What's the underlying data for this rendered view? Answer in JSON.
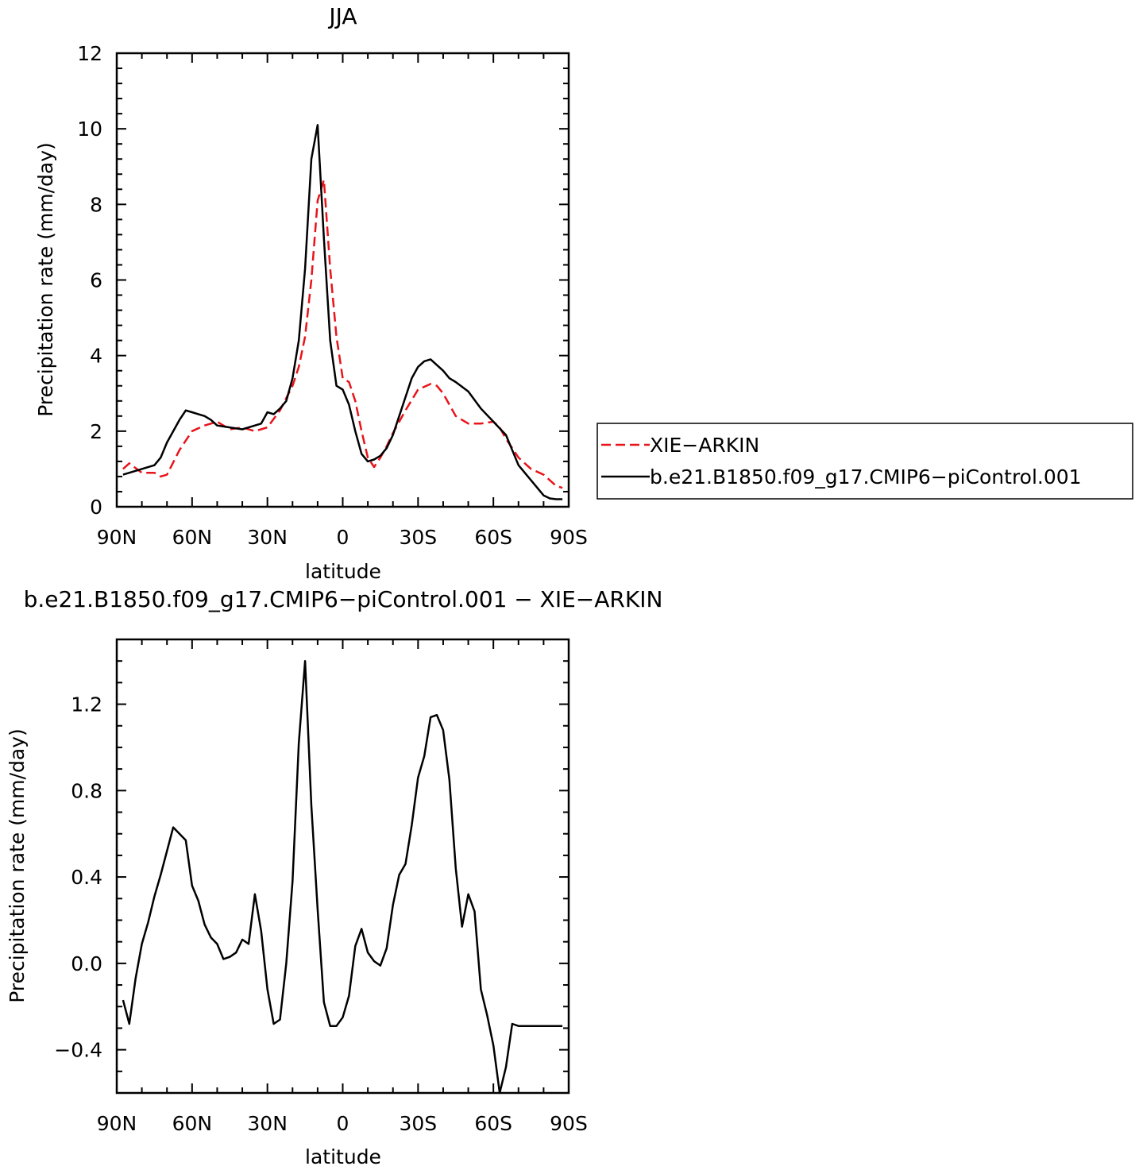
{
  "charts": [
    {
      "title": "JJA",
      "xlabel": "latitude",
      "ylabel": "Precipitation rate (mm/day)",
      "xticks": [
        "90N",
        "60N",
        "30N",
        "0",
        "30S",
        "60S",
        "90S"
      ],
      "yticks": [
        "0",
        "2",
        "4",
        "6",
        "8",
        "10",
        "12"
      ],
      "legend": [
        {
          "label": "XIE−ARKIN"
        },
        {
          "label": "b.e21.B1850.f09_g17.CMIP6−piControl.001"
        }
      ]
    },
    {
      "title": "b.e21.B1850.f09_g17.CMIP6−piControl.001 − XIE−ARKIN",
      "xlabel": "latitude",
      "ylabel": "Precipitation rate (mm/day)",
      "xticks": [
        "90N",
        "60N",
        "30N",
        "0",
        "30S",
        "60S",
        "90S"
      ],
      "yticks": [
        "−0.4",
        "0.0",
        "0.4",
        "0.8",
        "1.2"
      ]
    }
  ],
  "chart_data": [
    {
      "type": "line",
      "title": "JJA",
      "xlabel": "latitude",
      "ylabel": "Precipitation rate (mm/day)",
      "x_unit": "degrees latitude (positive = N, negative = S)",
      "xlim": [
        90,
        -90
      ],
      "ylim": [
        0,
        12
      ],
      "legend_position": "right",
      "grid": false,
      "series": [
        {
          "name": "XIE−ARKIN",
          "color": "#e8141a",
          "dash": "dashed",
          "x": [
            87.5,
            85,
            80,
            75,
            72.5,
            70,
            65,
            60,
            55,
            50,
            45,
            40,
            35,
            30,
            25,
            20,
            17.5,
            15,
            12.5,
            10,
            7.5,
            5,
            2.5,
            0,
            -2.5,
            -5,
            -7.5,
            -10,
            -12.5,
            -15,
            -17.5,
            -20,
            -25,
            -30,
            -35,
            -37.5,
            -40,
            -42.5,
            -45,
            -50,
            -55,
            -60,
            -62.5,
            -65,
            -70,
            -75,
            -80,
            -85,
            -87.5
          ],
          "y": [
            1.0,
            1.15,
            0.9,
            0.9,
            0.8,
            0.85,
            1.5,
            2.0,
            2.15,
            2.25,
            2.05,
            2.1,
            2.0,
            2.1,
            2.55,
            3.2,
            3.7,
            4.5,
            6.0,
            8.1,
            8.65,
            6.3,
            4.5,
            3.4,
            3.3,
            2.8,
            2.0,
            1.3,
            1.05,
            1.3,
            1.6,
            1.95,
            2.55,
            3.1,
            3.25,
            3.2,
            3.0,
            2.7,
            2.4,
            2.2,
            2.2,
            2.25,
            2.1,
            1.8,
            1.3,
            1.0,
            0.85,
            0.55,
            0.5
          ]
        },
        {
          "name": "b.e21.B1850.f09_g17.CMIP6−piControl.001",
          "color": "#000000",
          "dash": "solid",
          "x": [
            87.5,
            85,
            80,
            75,
            72.5,
            70,
            65,
            62.5,
            60,
            57.5,
            55,
            52.5,
            50,
            45,
            40,
            35,
            32.5,
            30,
            27.5,
            25,
            22.5,
            20,
            17.5,
            15,
            12.5,
            10,
            7.5,
            5,
            2.5,
            0,
            -2.5,
            -5,
            -7.5,
            -10,
            -12.5,
            -15,
            -17.5,
            -20,
            -22.5,
            -25,
            -27.5,
            -30,
            -32.5,
            -35,
            -37.5,
            -40,
            -42.5,
            -45,
            -50,
            -55,
            -60,
            -65,
            -70,
            -75,
            -80,
            -82.5,
            -85,
            -87.5
          ],
          "y": [
            0.85,
            0.9,
            1.0,
            1.1,
            1.3,
            1.7,
            2.3,
            2.55,
            2.5,
            2.45,
            2.4,
            2.3,
            2.15,
            2.1,
            2.05,
            2.15,
            2.2,
            2.5,
            2.45,
            2.6,
            2.8,
            3.4,
            4.4,
            6.3,
            9.2,
            10.1,
            7.1,
            4.4,
            3.2,
            3.1,
            2.7,
            2.0,
            1.4,
            1.2,
            1.25,
            1.35,
            1.55,
            1.9,
            2.4,
            2.9,
            3.4,
            3.7,
            3.85,
            3.9,
            3.75,
            3.6,
            3.4,
            3.3,
            3.05,
            2.6,
            2.25,
            1.9,
            1.1,
            0.7,
            0.3,
            0.22,
            0.2,
            0.2
          ]
        }
      ]
    },
    {
      "type": "line",
      "title": "b.e21.B1850.f09_g17.CMIP6−piControl.001 − XIE−ARKIN",
      "xlabel": "latitude",
      "ylabel": "Precipitation rate (mm/day)",
      "x_unit": "degrees latitude (positive = N, negative = S)",
      "xlim": [
        90,
        -90
      ],
      "ylim": [
        -0.6,
        1.5
      ],
      "grid": false,
      "series": [
        {
          "color": "#000000",
          "dash": "solid",
          "x": [
            87.5,
            85,
            82.5,
            80,
            77.5,
            75,
            72.5,
            70,
            67.5,
            65,
            62.5,
            60,
            57.5,
            55,
            52.5,
            50,
            47.5,
            45,
            42.5,
            40,
            37.5,
            35,
            32.5,
            30,
            27.5,
            25,
            22.5,
            20,
            17.5,
            15,
            12.5,
            10,
            7.5,
            5,
            2.5,
            0,
            -2.5,
            -5,
            -7.5,
            -10,
            -12.5,
            -15,
            -17.5,
            -20,
            -22.5,
            -25,
            -27.5,
            -30,
            -32.5,
            -35,
            -37.5,
            -40,
            -42.5,
            -45,
            -47.5,
            -50,
            -52.5,
            -55,
            -57.5,
            -60,
            -62.5,
            -65,
            -67.5,
            -70,
            -72.5,
            -75,
            -77.5,
            -80,
            -82.5,
            -85,
            -87.5
          ],
          "y": [
            -0.17,
            -0.28,
            -0.07,
            0.09,
            0.19,
            0.31,
            0.41,
            0.52,
            0.63,
            0.6,
            0.57,
            0.36,
            0.29,
            0.18,
            0.12,
            0.09,
            0.02,
            0.03,
            0.05,
            0.11,
            0.09,
            0.32,
            0.15,
            -0.12,
            -0.28,
            -0.26,
            0.0,
            0.38,
            1.02,
            1.4,
            0.73,
            0.25,
            -0.18,
            -0.29,
            -0.29,
            -0.25,
            -0.15,
            0.08,
            0.16,
            0.05,
            0.01,
            -0.01,
            0.07,
            0.27,
            0.41,
            0.46,
            0.64,
            0.86,
            0.96,
            1.14,
            1.15,
            1.08,
            0.85,
            0.44,
            0.17,
            0.32,
            0.24,
            -0.12,
            -0.24,
            -0.38,
            -0.6,
            -0.48,
            -0.28,
            -0.29,
            -0.29,
            -0.29,
            -0.29,
            -0.29,
            -0.29,
            -0.29,
            -0.29
          ]
        }
      ]
    }
  ]
}
